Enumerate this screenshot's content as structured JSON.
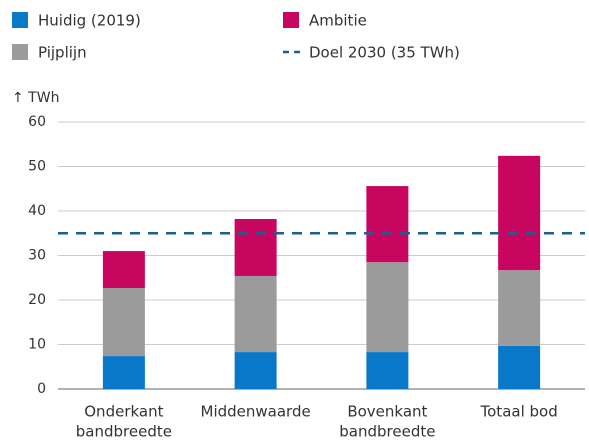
{
  "chart_data": {
    "type": "stacked_bar",
    "y_axis_label": "↑ TWh",
    "categories": [
      [
        "Onderkant",
        "bandbreedte"
      ],
      [
        "Middenwaarde"
      ],
      [
        "Bovenkant",
        "bandbreedte"
      ],
      [
        "Totaal bod"
      ]
    ],
    "series": [
      {
        "name": "Huidig (2019)",
        "color": "#0a78c8",
        "values": [
          7.4,
          8.3,
          8.3,
          9.7
        ]
      },
      {
        "name": "Pijplijn",
        "color": "#9b9b9b",
        "values": [
          15.3,
          17.1,
          20.2,
          17.0
        ]
      },
      {
        "name": "Ambitie",
        "color": "#c8065f",
        "values": [
          8.3,
          12.8,
          17.1,
          25.7
        ]
      }
    ],
    "reference_line": {
      "name": "Doel 2030 (35 TWh)",
      "value": 35,
      "color": "#1d5f8f"
    },
    "ylim": [
      0,
      60
    ],
    "yticks": [
      0,
      10,
      20,
      30,
      40,
      50,
      60
    ],
    "grid": true
  }
}
